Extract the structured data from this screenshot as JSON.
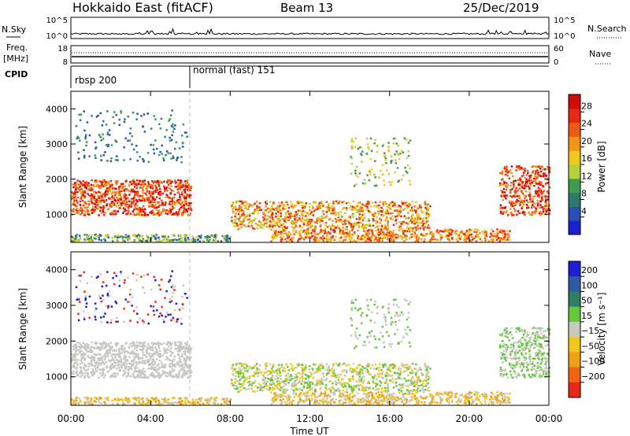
{
  "header": {
    "title": "Hokkaido East (fitACF)",
    "beam": "Beam 13",
    "date": "25/Dec/2019"
  },
  "top_panels": {
    "nsky_label": "N.Sky",
    "nsky_ticks": [
      "10^5",
      "10^0"
    ],
    "nsearch_label": "N.Search",
    "nsearch_ticks": [
      "10^5",
      "10^0"
    ],
    "freq_label_1": "Freq.",
    "freq_label_2": "[MHz]",
    "freq_ticks": [
      "18",
      "8"
    ],
    "nave_label": "Nave",
    "nave_ticks": [
      "60",
      "0"
    ],
    "cpid_label": "CPID",
    "cpid_segments": [
      {
        "label": "rbsp 200",
        "start": 0,
        "end": 6
      },
      {
        "label": "normal (fast) 151",
        "start": 6,
        "end": 24
      }
    ]
  },
  "colors": {
    "power_scale": [
      "#1e1ed2",
      "#2850b4",
      "#2e7a6a",
      "#3c9c50",
      "#b4d23c",
      "#f0c81e",
      "#f09614",
      "#f05a14",
      "#e62814",
      "#d20a0a"
    ],
    "velocity_scale": [
      "#1e1ed2",
      "#2e5aa0",
      "#2e8064",
      "#64c83c",
      "#c8c8c0",
      "#f0c81e",
      "#f0a014",
      "#f06414",
      "#e62814"
    ]
  },
  "chart_data": [
    {
      "type": "heatmap",
      "ylabel": "Slant Range [km]",
      "y_ticks": [
        "1000",
        "2000",
        "3000",
        "4000"
      ],
      "ylim": [
        200,
        4500
      ],
      "xlim": [
        0,
        24
      ],
      "x_ticks": [
        "00:00",
        "04:00",
        "08:00",
        "12:00",
        "16:00",
        "20:00",
        "00:00"
      ],
      "colorbar_label": "Power [dB]",
      "colorbar_ticks": [
        "4",
        "8",
        "12",
        "16",
        "20",
        "24",
        "28"
      ],
      "colorbar_range": [
        0,
        32
      ]
    },
    {
      "type": "heatmap",
      "ylabel": "Slant Range [km]",
      "y_ticks": [
        "1000",
        "2000",
        "3000",
        "4000"
      ],
      "ylim": [
        200,
        4500
      ],
      "xlim": [
        0,
        24
      ],
      "x_ticks": [
        "00:00",
        "04:00",
        "08:00",
        "12:00",
        "16:00",
        "20:00",
        "00:00"
      ],
      "xlabel": "Time UT",
      "colorbar_label": "Velocity [m s⁻¹]",
      "colorbar_ticks": [
        "200",
        "100",
        "50",
        "15",
        "−15",
        "−50",
        "−100",
        "−200"
      ]
    }
  ]
}
